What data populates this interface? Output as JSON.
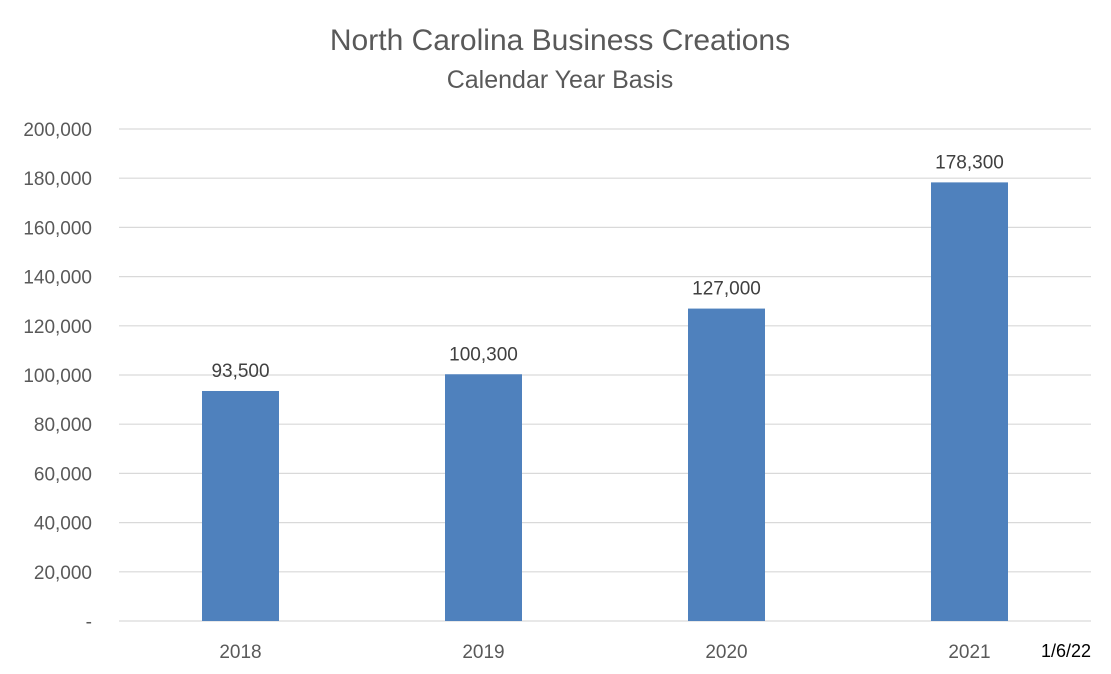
{
  "chart_data": {
    "type": "bar",
    "title": "North Carolina Business Creations",
    "subtitle": "Calendar Year Basis",
    "categories": [
      "2018",
      "2019",
      "2020",
      "2021"
    ],
    "values": [
      93500,
      100300,
      127000,
      178300
    ],
    "data_labels": [
      "93,500",
      "100,300",
      "127,000",
      "178,300"
    ],
    "ylim": [
      0,
      200000
    ],
    "y_ticks": [
      0,
      20000,
      40000,
      60000,
      80000,
      100000,
      120000,
      140000,
      160000,
      180000,
      200000
    ],
    "y_tick_labels": [
      "-",
      "20,000",
      "40,000",
      "60,000",
      "80,000",
      "100,000",
      "120,000",
      "140,000",
      "160,000",
      "180,000",
      "200,000"
    ],
    "xlabel": "",
    "ylabel": "",
    "grid": true,
    "legend": "none",
    "bar_color": "#4F81BD",
    "gridline_color": "#D9D9D9"
  },
  "footnote": "1/6/22"
}
